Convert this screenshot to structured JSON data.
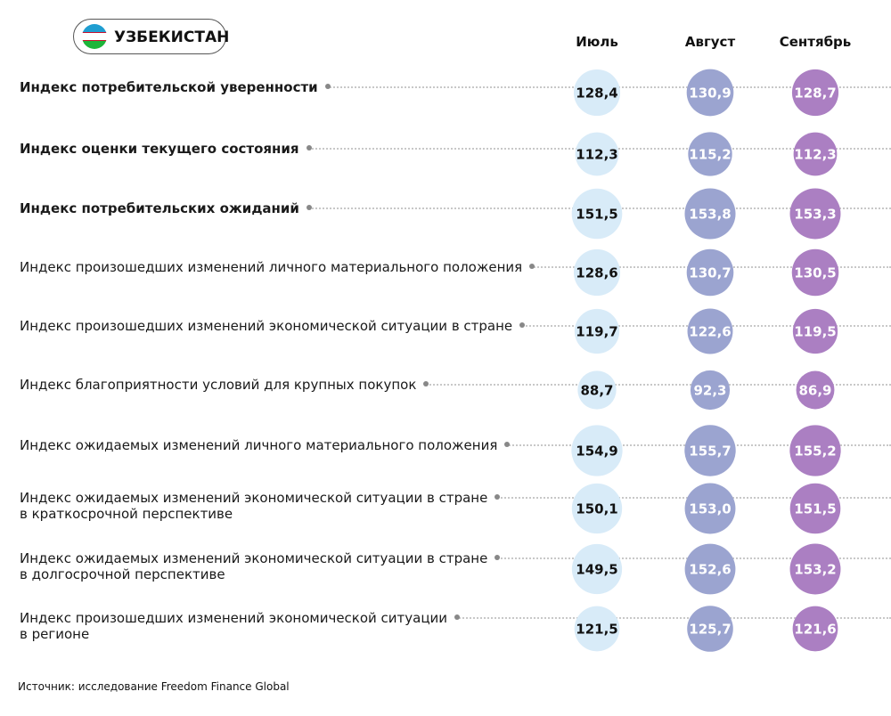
{
  "chart_data": {
    "type": "bubble",
    "title": "УЗБЕКИСТАН",
    "source": "Источник: исследование Freedom Finance Global",
    "categories": [
      "Индекс потребительской уверенности",
      "Индекс оценки текущего состояния",
      "Индекс потребительских ожиданий",
      "Индекс произошедших изменений личного материального положения",
      "Индекс произошедших изменений экономической ситуации в стране",
      "Индекс благоприятности условий для крупных покупок",
      "Индекс ожидаемых изменений личного материального положения",
      "Индекс ожидаемых изменений экономической ситуации в стране\nв краткосрочной перспективе",
      "Индекс ожидаемых изменений экономической ситуации в стране\nв долгосрочной перспективе",
      "Индекс произошедших изменений экономической ситуации\nв регионе"
    ],
    "series": [
      {
        "name": "Июль",
        "color": "#d8ebf8",
        "values": [
          128.4,
          112.3,
          151.5,
          128.6,
          119.7,
          88.7,
          154.9,
          150.1,
          149.5,
          121.5
        ],
        "value_labels": [
          "128,4",
          "112,3",
          "151,5",
          "128,6",
          "119,7",
          "88,7",
          "154,9",
          "150,1",
          "149,5",
          "121,5"
        ]
      },
      {
        "name": "Август",
        "color": "#9ba4d0",
        "values": [
          130.9,
          115.2,
          153.8,
          130.7,
          122.6,
          92.3,
          155.7,
          153.0,
          152.6,
          125.7
        ],
        "value_labels": [
          "130,9",
          "115,2",
          "153,8",
          "130,7",
          "122,6",
          "92,3",
          "155,7",
          "153,0",
          "152,6",
          "125,7"
        ]
      },
      {
        "name": "Сентябрь",
        "color": "#ab7fc2",
        "values": [
          128.7,
          112.3,
          153.3,
          130.5,
          119.5,
          86.9,
          155.2,
          151.5,
          153.2,
          121.6
        ],
        "value_labels": [
          "128,7",
          "112,3",
          "153,3",
          "130,5",
          "119,5",
          "86,9",
          "155,2",
          "151,5",
          "153,2",
          "121,6"
        ]
      }
    ]
  }
}
